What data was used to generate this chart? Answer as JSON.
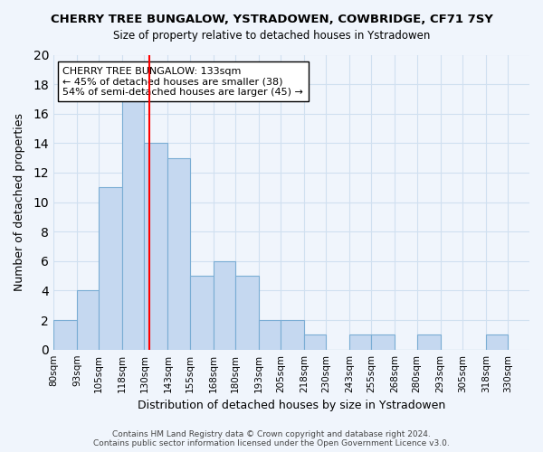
{
  "title": "CHERRY TREE BUNGALOW, YSTRADOWEN, COWBRIDGE, CF71 7SY",
  "subtitle": "Size of property relative to detached houses in Ystradowen",
  "xlabel": "Distribution of detached houses by size in Ystradowen",
  "ylabel": "Number of detached properties",
  "footer_line1": "Contains HM Land Registry data © Crown copyright and database right 2024.",
  "footer_line2": "Contains public sector information licensed under the Open Government Licence v3.0.",
  "bin_labels": [
    "80sqm",
    "93sqm",
    "105sqm",
    "118sqm",
    "130sqm",
    "143sqm",
    "155sqm",
    "168sqm",
    "180sqm",
    "193sqm",
    "205sqm",
    "218sqm",
    "230sqm",
    "243sqm",
    "255sqm",
    "268sqm",
    "280sqm",
    "293sqm",
    "305sqm",
    "318sqm",
    "330sqm"
  ],
  "bin_edges": [
    80,
    93,
    105,
    118,
    130,
    143,
    155,
    168,
    180,
    193,
    205,
    218,
    230,
    243,
    255,
    268,
    280,
    293,
    305,
    318,
    330
  ],
  "bar_heights": [
    2,
    4,
    11,
    17,
    14,
    13,
    5,
    6,
    5,
    2,
    2,
    1,
    0,
    1,
    1,
    0,
    1,
    0,
    0,
    1
  ],
  "bar_color": "#c5d8f0",
  "bar_edgecolor": "#7aadd4",
  "vline_x": 133,
  "vline_color": "red",
  "ylim": [
    0,
    20
  ],
  "annotation_title": "CHERRY TREE BUNGALOW: 133sqm",
  "annotation_line2": "← 45% of detached houses are smaller (38)",
  "annotation_line3": "54% of semi-detached houses are larger (45) →",
  "annotation_box_color": "white",
  "annotation_box_edgecolor": "black",
  "grid_color": "#d0e0f0",
  "background_color": "#f0f5fc"
}
